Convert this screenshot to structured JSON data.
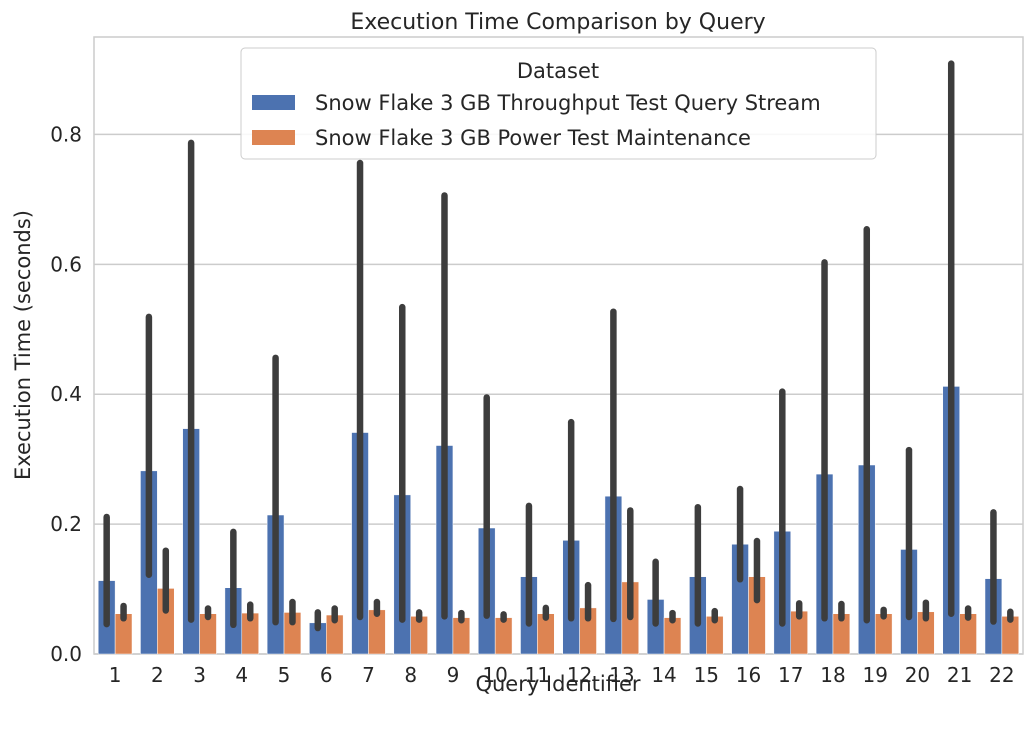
{
  "chart_data": {
    "type": "bar",
    "title": "Execution Time Comparison by Query",
    "xlabel": "Query Identifier",
    "ylabel": "Execution Time (seconds)",
    "ylim": [
      0,
      0.95
    ],
    "yticks": [
      "0.0",
      "0.2",
      "0.4",
      "0.6",
      "0.8"
    ],
    "grid": "y",
    "legend": {
      "title": "Dataset",
      "placement": "top-center"
    },
    "categories": [
      "1",
      "2",
      "3",
      "4",
      "5",
      "6",
      "7",
      "8",
      "9",
      "10",
      "11",
      "12",
      "13",
      "14",
      "15",
      "16",
      "17",
      "18",
      "19",
      "20",
      "21",
      "22"
    ],
    "series": [
      {
        "name": "Snow Flake 3 GB Throughput Test Query Stream",
        "color": "#4c72b0",
        "values": [
          0.113,
          0.282,
          0.347,
          0.102,
          0.214,
          0.048,
          0.341,
          0.245,
          0.321,
          0.194,
          0.119,
          0.175,
          0.243,
          0.084,
          0.119,
          0.169,
          0.189,
          0.277,
          0.291,
          0.161,
          0.412,
          0.116
        ],
        "ci_low": [
          0.046,
          0.122,
          0.053,
          0.045,
          0.049,
          0.04,
          0.057,
          0.053,
          0.058,
          0.059,
          0.047,
          0.055,
          0.054,
          0.047,
          0.047,
          0.115,
          0.047,
          0.055,
          0.052,
          0.057,
          0.062,
          0.05
        ],
        "ci_high": [
          0.211,
          0.519,
          0.787,
          0.188,
          0.456,
          0.064,
          0.756,
          0.534,
          0.706,
          0.395,
          0.228,
          0.357,
          0.527,
          0.142,
          0.226,
          0.254,
          0.404,
          0.603,
          0.654,
          0.314,
          0.909,
          0.218
        ]
      },
      {
        "name": "Snow Flake 3 GB Power Test Maintenance",
        "color": "#dd8452",
        "values": [
          0.062,
          0.101,
          0.062,
          0.063,
          0.064,
          0.06,
          0.068,
          0.058,
          0.056,
          0.056,
          0.062,
          0.071,
          0.111,
          0.056,
          0.058,
          0.119,
          0.066,
          0.062,
          0.062,
          0.065,
          0.062,
          0.058
        ],
        "ci_low": [
          0.055,
          0.067,
          0.057,
          0.055,
          0.049,
          0.052,
          0.062,
          0.053,
          0.052,
          0.053,
          0.056,
          0.055,
          0.057,
          0.052,
          0.052,
          0.083,
          0.058,
          0.055,
          0.058,
          0.055,
          0.056,
          0.053
        ],
        "ci_high": [
          0.074,
          0.159,
          0.07,
          0.076,
          0.08,
          0.07,
          0.08,
          0.064,
          0.063,
          0.061,
          0.071,
          0.106,
          0.221,
          0.063,
          0.066,
          0.174,
          0.078,
          0.077,
          0.068,
          0.079,
          0.07,
          0.065
        ]
      }
    ]
  }
}
